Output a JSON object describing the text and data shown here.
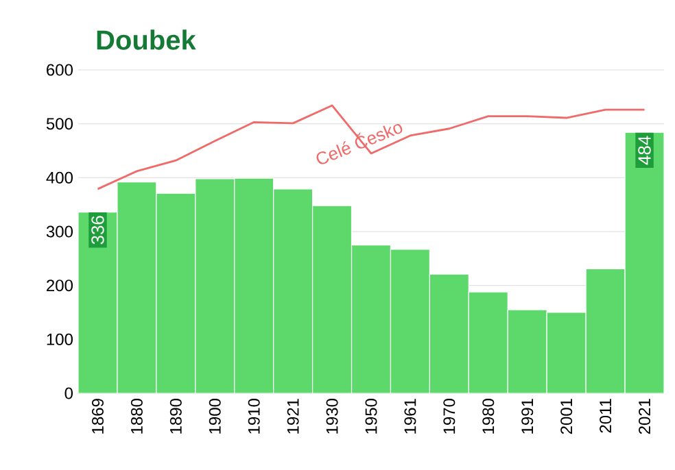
{
  "chart_data": {
    "type": "bar",
    "title": "Doubek",
    "categories": [
      "1869",
      "1880",
      "1890",
      "1900",
      "1910",
      "1921",
      "1930",
      "1950",
      "1961",
      "1970",
      "1980",
      "1991",
      "2001",
      "2011",
      "2021"
    ],
    "ylim": [
      0,
      600
    ],
    "yticks": [
      0,
      100,
      200,
      300,
      400,
      500,
      600
    ],
    "grid": "y",
    "series": [
      {
        "color": "#5cd96a",
        "values": [
          336,
          392,
          371,
          398,
          399,
          379,
          348,
          275,
          267,
          221,
          188,
          155,
          150,
          231,
          484
        ],
        "value_labels": [
          "336",
          null,
          null,
          null,
          null,
          null,
          null,
          null,
          null,
          null,
          null,
          null,
          null,
          null,
          "484"
        ]
      },
      {
        "type": "line",
        "name": "Celé Česko",
        "color": "#f06a6a",
        "values": [
          379,
          412,
          432,
          468,
          503,
          501,
          534,
          445,
          478,
          491,
          514,
          514,
          511,
          526,
          526
        ]
      }
    ]
  }
}
